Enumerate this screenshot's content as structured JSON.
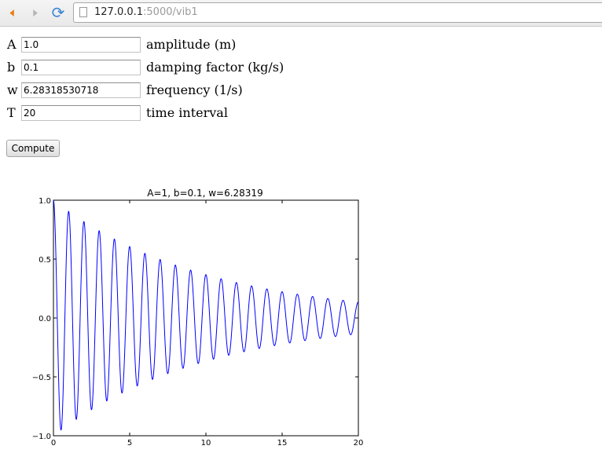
{
  "browser": {
    "url_host": "127.0.0.1",
    "url_path": ":5000/vib1"
  },
  "form": {
    "fields": [
      {
        "label": "A",
        "value": "1.0",
        "description": "amplitude (m)"
      },
      {
        "label": "b",
        "value": "0.1",
        "description": "damping factor (kg/s)"
      },
      {
        "label": "w",
        "value": "6.28318530718",
        "description": "frequency (1/s)"
      },
      {
        "label": "T",
        "value": "20",
        "description": "time interval"
      }
    ],
    "compute_label": "Compute"
  },
  "chart_data": {
    "type": "line",
    "title": "A=1, b=0.1, w=6.28319",
    "xlabel": "",
    "ylabel": "",
    "xlim": [
      0,
      20
    ],
    "ylim": [
      -1.0,
      1.0
    ],
    "xticks": [
      "0",
      "5",
      "10",
      "15",
      "20"
    ],
    "yticks": [
      "1.0",
      "0.5",
      "0.0",
      "−0.5",
      "−1.0"
    ],
    "series_color": "#0000ff",
    "function": "A*exp(-b*t)*cos(w*t)",
    "params": {
      "A": 1.0,
      "b": 0.1,
      "w": 6.28318530718
    },
    "sample_points": [
      {
        "x": 0,
        "y": 1.0
      },
      {
        "x": 0.5,
        "y": -0.951
      },
      {
        "x": 1,
        "y": 0.905
      },
      {
        "x": 1.5,
        "y": -0.861
      },
      {
        "x": 2,
        "y": 0.819
      },
      {
        "x": 5,
        "y": 0.607
      },
      {
        "x": 10,
        "y": 0.368
      },
      {
        "x": 15,
        "y": 0.223
      },
      {
        "x": 20,
        "y": 0.135
      }
    ]
  }
}
